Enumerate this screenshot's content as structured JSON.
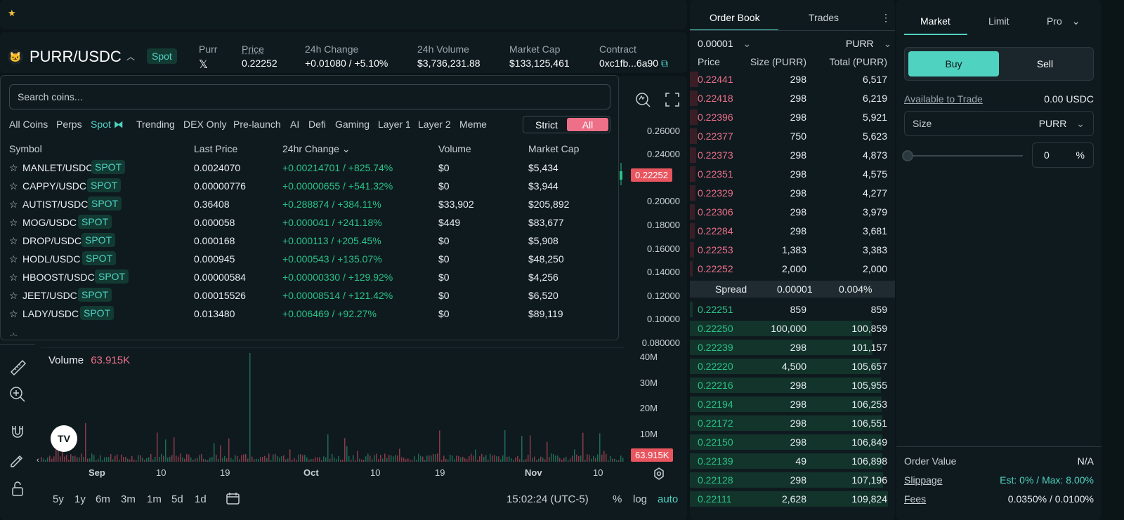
{
  "header": {
    "pair": "PURR/USDC",
    "market_type": "Spot",
    "token_label": "Purr",
    "social_icon": "X",
    "stats": [
      {
        "label": "Price",
        "value": "0.22252"
      },
      {
        "label": "24h Change",
        "value": "+0.01080 / +5.10%"
      },
      {
        "label": "24h Volume",
        "value": "$3,736,231.88"
      },
      {
        "label": "Market Cap",
        "value": "$133,125,461"
      },
      {
        "label": "Contract",
        "value": "0xc1fb...6a90"
      }
    ]
  },
  "dropdown": {
    "search_placeholder": "Search coins...",
    "filters": [
      "All Coins",
      "Perps",
      "Spot",
      "Trending",
      "DEX Only",
      "Pre-launch",
      "AI",
      "Defi",
      "Gaming",
      "Layer 1",
      "Layer 2",
      "Meme"
    ],
    "active_filter": "Spot",
    "toggle": {
      "strict": "Strict",
      "all": "All"
    },
    "columns": [
      "Symbol",
      "Last Price",
      "24hr Change",
      "Volume",
      "Market Cap"
    ],
    "rows": [
      {
        "symbol": "MANLET/USDC",
        "tag": "SPOT",
        "price": "0.0024070",
        "change": "+0.00214701 / +825.74%",
        "volume": "$0",
        "mcap": "$5,434"
      },
      {
        "symbol": "CAPPY/USDC",
        "tag": "SPOT",
        "price": "0.00000776",
        "change": "+0.00000655 / +541.32%",
        "volume": "$0",
        "mcap": "$3,944"
      },
      {
        "symbol": "AUTIST/USDC",
        "tag": "SPOT",
        "price": "0.36408",
        "change": "+0.288874 / +384.11%",
        "volume": "$33,902",
        "mcap": "$205,892"
      },
      {
        "symbol": "MOG/USDC",
        "tag": "SPOT",
        "price": "0.000058",
        "change": "+0.000041 / +241.18%",
        "volume": "$449",
        "mcap": "$83,677"
      },
      {
        "symbol": "DROP/USDC",
        "tag": "SPOT",
        "price": "0.000168",
        "change": "+0.000113 / +205.45%",
        "volume": "$0",
        "mcap": "$5,908"
      },
      {
        "symbol": "HODL/USDC",
        "tag": "SPOT",
        "price": "0.000945",
        "change": "+0.000543 / +135.07%",
        "volume": "$0",
        "mcap": "$48,250"
      },
      {
        "symbol": "HBOOST/USDC",
        "tag": "SPOT",
        "price": "0.00000584",
        "change": "+0.00000330 / +129.92%",
        "volume": "$0",
        "mcap": "$4,256"
      },
      {
        "symbol": "JEET/USDC",
        "tag": "SPOT",
        "price": "0.00015526",
        "change": "+0.00008514 / +121.42%",
        "volume": "$0",
        "mcap": "$6,520"
      },
      {
        "symbol": "LADY/USDC",
        "tag": "SPOT",
        "price": "0.013480",
        "change": "+0.006469 / +92.27%",
        "volume": "$0",
        "mcap": "$89,119"
      }
    ]
  },
  "chart": {
    "price_axis": [
      "0.26000",
      "0.24000",
      "0.20000",
      "0.18000",
      "0.16000",
      "0.14000",
      "0.12000",
      "0.10000",
      "0.080000"
    ],
    "current_price": "0.22252",
    "volume_label": "Volume",
    "volume_value": "63.915K",
    "volume_axis": [
      "40M",
      "30M",
      "20M",
      "10M"
    ],
    "volume_tag": "63.915K",
    "x_axis": [
      "Sep",
      "10",
      "19",
      "Oct",
      "10",
      "19",
      "Nov",
      "10"
    ],
    "ranges": [
      "5y",
      "1y",
      "6m",
      "3m",
      "1m",
      "5d",
      "1d"
    ],
    "time": "15:02:24 (UTC-5)",
    "scale_opts": [
      "%",
      "log",
      "auto"
    ],
    "tradingview_logo": "TV"
  },
  "order_book": {
    "tabs": [
      "Order Book",
      "Trades"
    ],
    "tick": "0.00001",
    "asset": "PURR",
    "columns": [
      "Price",
      "Size (PURR)",
      "Total (PURR)"
    ],
    "asks": [
      {
        "price": "0.22441",
        "size": "298",
        "total": "6,517"
      },
      {
        "price": "0.22418",
        "size": "298",
        "total": "6,219"
      },
      {
        "price": "0.22396",
        "size": "298",
        "total": "5,921"
      },
      {
        "price": "0.22377",
        "size": "750",
        "total": "5,623"
      },
      {
        "price": "0.22373",
        "size": "298",
        "total": "4,873"
      },
      {
        "price": "0.22351",
        "size": "298",
        "total": "4,575"
      },
      {
        "price": "0.22329",
        "size": "298",
        "total": "4,277"
      },
      {
        "price": "0.22306",
        "size": "298",
        "total": "3,979"
      },
      {
        "price": "0.22284",
        "size": "298",
        "total": "3,681"
      },
      {
        "price": "0.22253",
        "size": "1,383",
        "total": "3,383"
      },
      {
        "price": "0.22252",
        "size": "2,000",
        "total": "2,000"
      }
    ],
    "spread": {
      "label": "Spread",
      "value": "0.00001",
      "pct": "0.004%"
    },
    "bids": [
      {
        "price": "0.22251",
        "size": "859",
        "total": "859"
      },
      {
        "price": "0.22250",
        "size": "100,000",
        "total": "100,859"
      },
      {
        "price": "0.22239",
        "size": "298",
        "total": "101,157"
      },
      {
        "price": "0.22220",
        "size": "4,500",
        "total": "105,657"
      },
      {
        "price": "0.22216",
        "size": "298",
        "total": "105,955"
      },
      {
        "price": "0.22194",
        "size": "298",
        "total": "106,253"
      },
      {
        "price": "0.22172",
        "size": "298",
        "total": "106,551"
      },
      {
        "price": "0.22150",
        "size": "298",
        "total": "106,849"
      },
      {
        "price": "0.22139",
        "size": "49",
        "total": "106,898"
      },
      {
        "price": "0.22128",
        "size": "298",
        "total": "107,196"
      },
      {
        "price": "0.22111",
        "size": "2,628",
        "total": "109,824"
      }
    ]
  },
  "trade": {
    "tabs": [
      "Market",
      "Limit",
      "Pro"
    ],
    "buy": "Buy",
    "sell": "Sell",
    "available_label": "Available to Trade",
    "available_value": "0.00 USDC",
    "size_label": "Size",
    "size_unit": "PURR",
    "pct_value": "0",
    "pct_sign": "%",
    "order_value_label": "Order Value",
    "order_value": "N/A",
    "slippage_label": "Slippage",
    "slippage_value": "Est: 0% / Max: 8.00%",
    "fees_label": "Fees",
    "fees_value": "0.0350% / 0.0100%"
  },
  "colors": {
    "accent": "#50d2c1",
    "bid": "#2bc287",
    "ask": "#ed7088",
    "price_tag": "#e8555e"
  }
}
